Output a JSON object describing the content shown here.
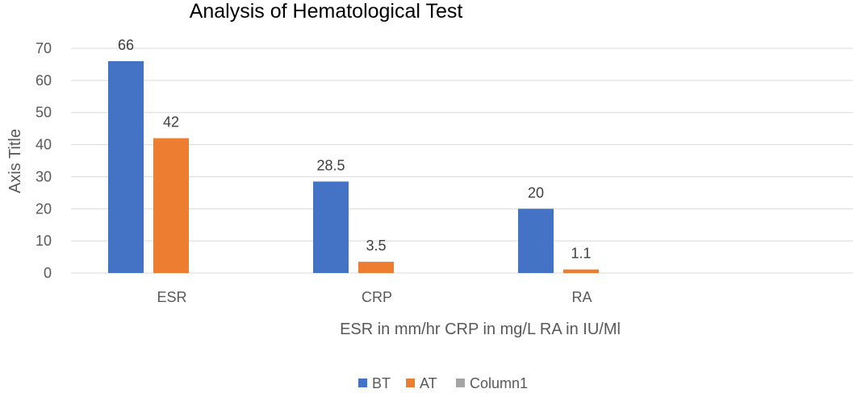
{
  "chart_data": {
    "type": "bar",
    "title": "Analysis of Hematological Test",
    "xlabel": "ESR in mm/hr CRP in mg/L RA in IU/Ml",
    "ylabel": "Axis Title",
    "categories": [
      "ESR",
      "CRP",
      "RA"
    ],
    "ylim": [
      0,
      70
    ],
    "yticks": [
      0,
      10,
      20,
      30,
      40,
      50,
      60,
      70
    ],
    "grid": true,
    "legend_position": "bottom",
    "series": [
      {
        "name": "BT",
        "color": "#4472C4",
        "values": [
          66,
          28.5,
          20
        ],
        "labels": [
          "66",
          "28.5",
          "20"
        ]
      },
      {
        "name": "AT",
        "color": "#ED7D31",
        "values": [
          42,
          3.5,
          1.1
        ],
        "labels": [
          "42",
          "3.5",
          "1.1"
        ]
      },
      {
        "name": "Column1",
        "color": "#A5A5A5",
        "values": [
          null,
          null,
          null
        ],
        "labels": [
          "",
          "",
          ""
        ]
      }
    ]
  }
}
